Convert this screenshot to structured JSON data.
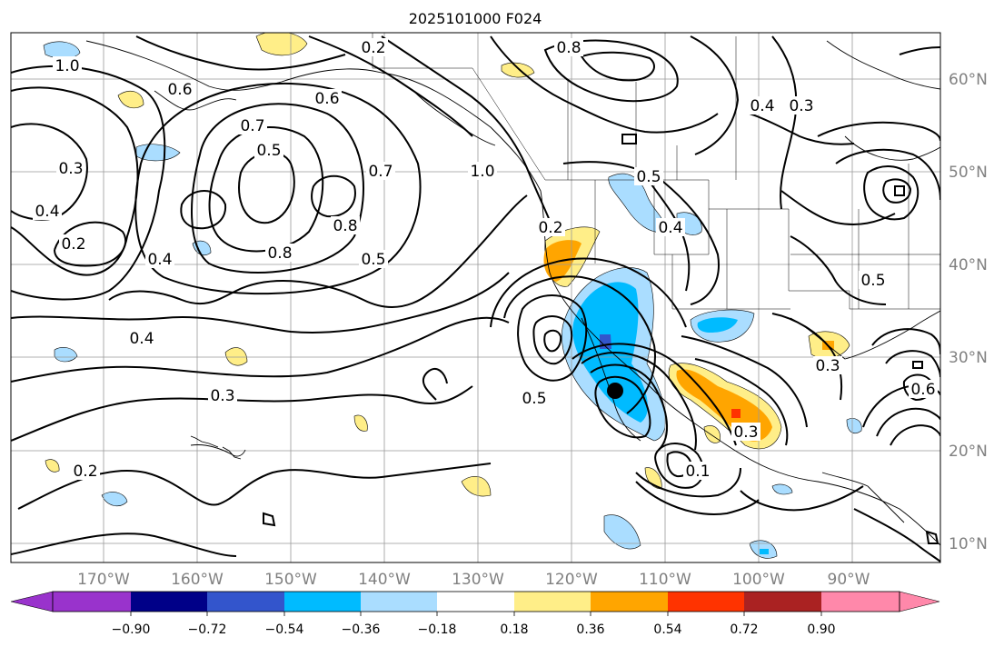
{
  "title": "2025101000 F024",
  "map": {
    "lon_labels": [
      "170°W",
      "160°W",
      "150°W",
      "140°W",
      "130°W",
      "120°W",
      "110°W",
      "100°W",
      "90°W"
    ],
    "lat_labels": [
      "60°N",
      "50°N",
      "40°N",
      "30°N",
      "20°N",
      "10°N"
    ],
    "contour_labels": [
      "0.2",
      "0.8",
      "1.0",
      "0.6",
      "0.7",
      "0.5",
      "0.3",
      "0.4",
      "0.2",
      "0.3",
      "0.4",
      "0.5",
      "0.7",
      "0.8",
      "1.0",
      "0.6",
      "0.8",
      "0.4",
      "0.3",
      "0.5",
      "0.4",
      "0.2",
      "0.5",
      "0.3",
      "0.6",
      "0.4",
      "0.5",
      "0.3",
      "0.2",
      "0.1"
    ],
    "storm_marker": "filled-circle"
  },
  "colorbar": {
    "tick_labels": [
      "−0.90",
      "−0.72",
      "−0.54",
      "−0.36",
      "−0.18",
      "0.18",
      "0.36",
      "0.54",
      "0.72",
      "0.90"
    ],
    "colors": [
      "#9933cc",
      "#000088",
      "#3355cc",
      "#00bbff",
      "#aaddff",
      "#ffffff",
      "#ffee88",
      "#ffa500",
      "#ff3300",
      "#aa2222",
      "#ff88aa"
    ],
    "extend": "both"
  }
}
